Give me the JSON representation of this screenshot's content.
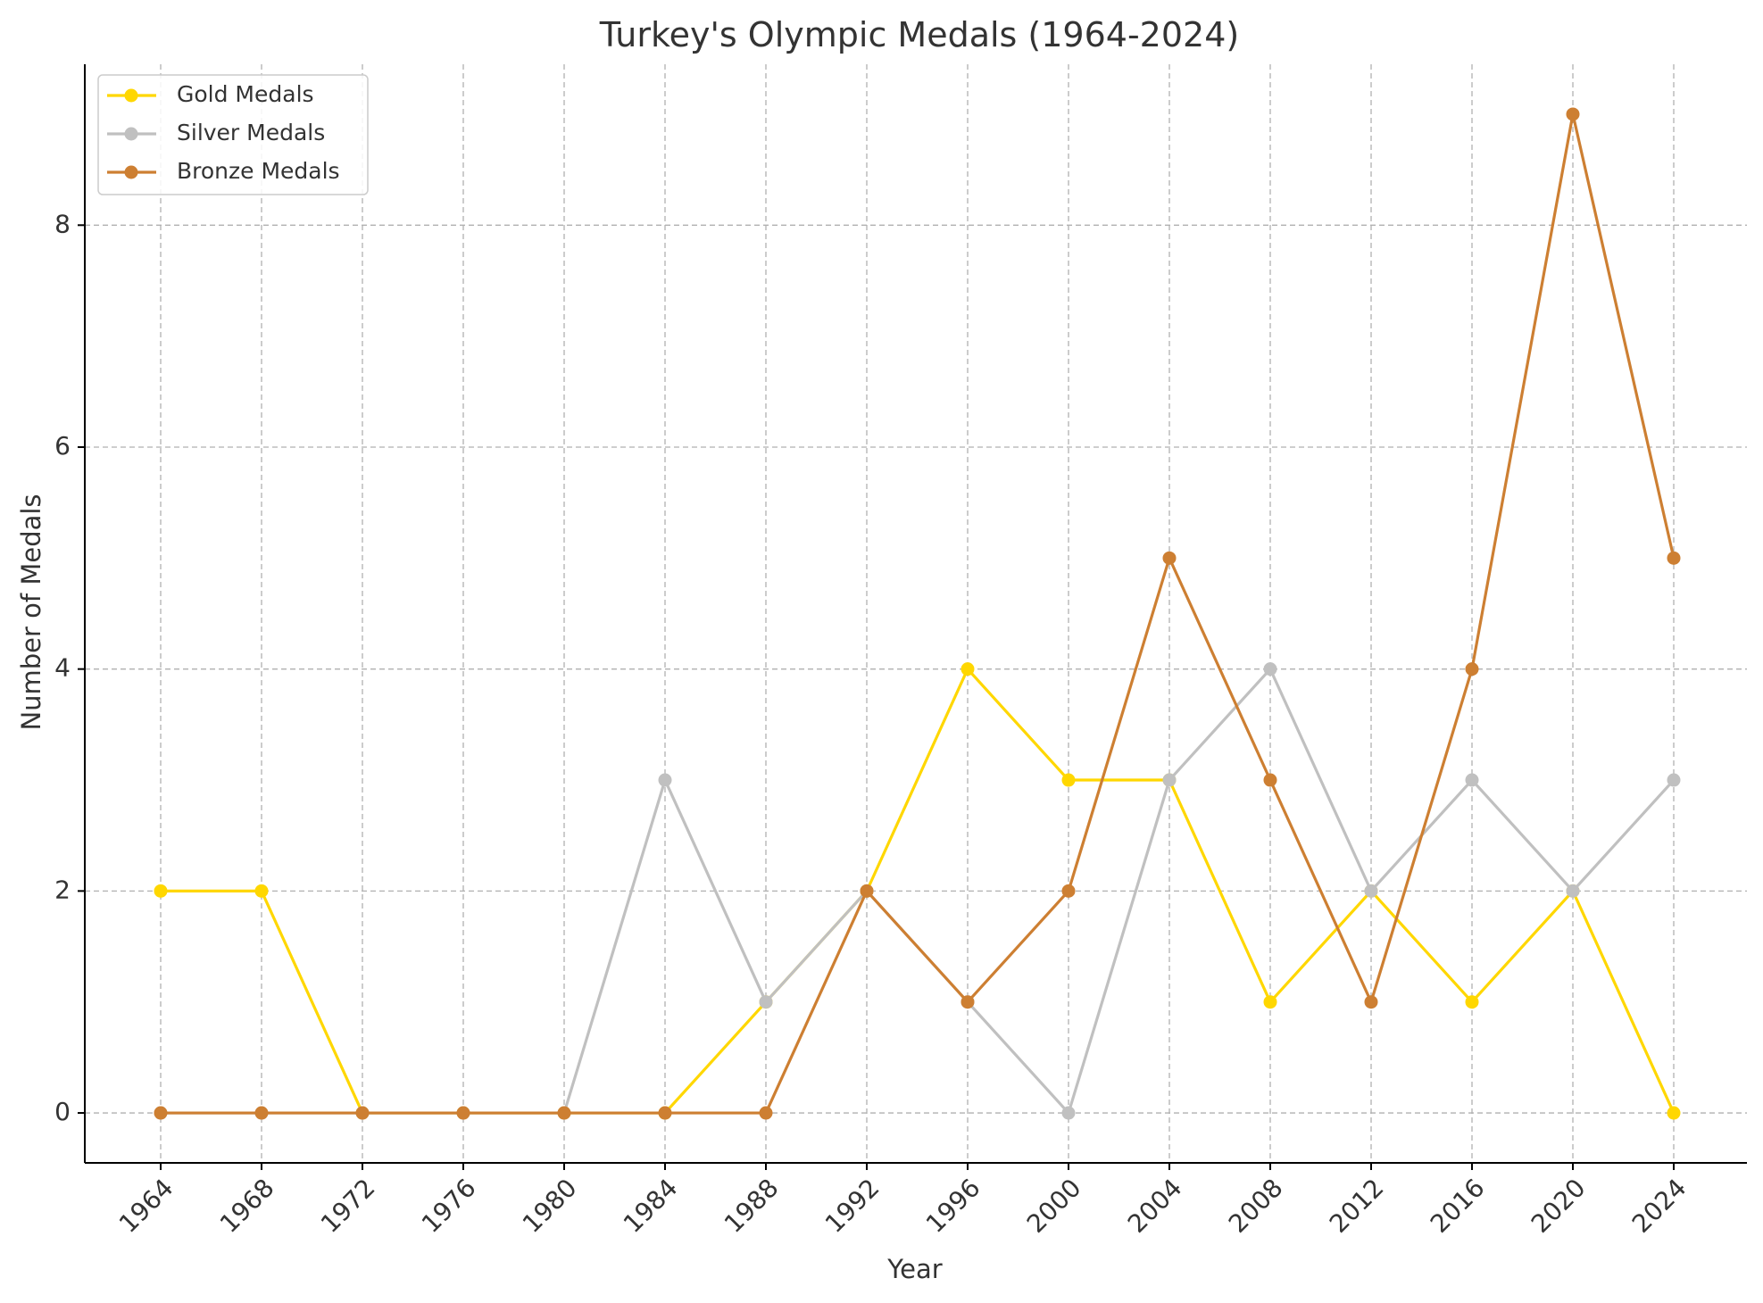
{
  "chart_data": {
    "type": "line",
    "title": "Turkey's Olympic Medals (1964-2024)",
    "xlabel": "Year",
    "ylabel": "Number of Medals",
    "x": [
      "1964",
      "1968",
      "1972",
      "1976",
      "1980",
      "1984",
      "1988",
      "1992",
      "1996",
      "2000",
      "2004",
      "2008",
      "2012",
      "2016",
      "2020",
      "2024"
    ],
    "ylim": [
      -0.45,
      9.45
    ],
    "yticks": [
      0,
      2,
      4,
      6,
      8
    ],
    "grid": true,
    "legend_position": "top-left",
    "series": [
      {
        "name": "Gold Medals",
        "color": "#FFD700",
        "values": [
          2,
          2,
          0,
          0,
          0,
          0,
          1,
          2,
          4,
          3,
          3,
          1,
          2,
          1,
          2,
          0
        ]
      },
      {
        "name": "Silver Medals",
        "color": "#C0C0C0",
        "values": [
          0,
          0,
          0,
          0,
          0,
          3,
          1,
          2,
          1,
          0,
          3,
          4,
          2,
          3,
          2,
          3
        ]
      },
      {
        "name": "Bronze Medals",
        "color": "#CD7F32",
        "values": [
          0,
          0,
          0,
          0,
          0,
          0,
          0,
          2,
          1,
          2,
          5,
          3,
          1,
          4,
          9,
          5
        ]
      }
    ]
  }
}
